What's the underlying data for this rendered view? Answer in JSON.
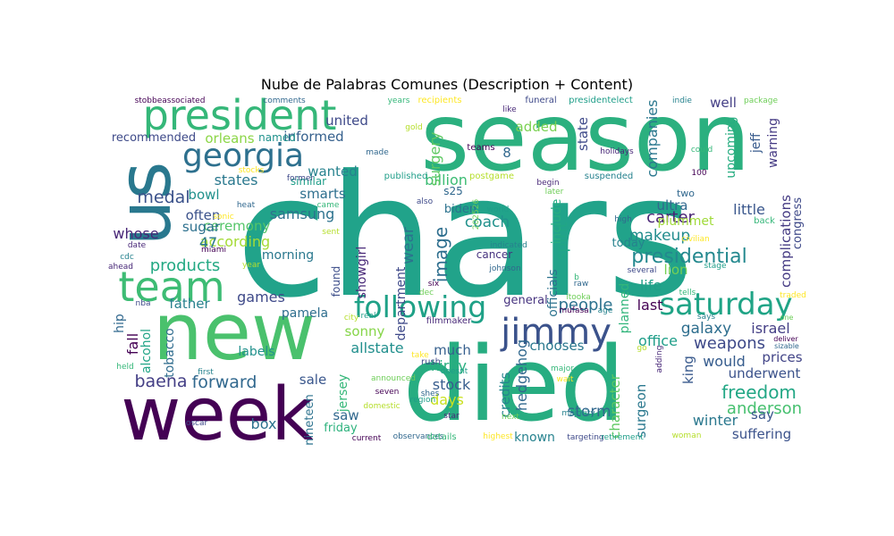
{
  "chart_data": {
    "type": "wordcloud",
    "title": "Nube de Palabras Comunes (Description + Content)",
    "background": "#ffffff",
    "colormap": "viridis",
    "words": [
      {
        "text": "chars",
        "color": "#21a38a"
      },
      {
        "text": "season",
        "color": "#2bb07f"
      },
      {
        "text": "died",
        "color": "#27ad81"
      },
      {
        "text": "new",
        "color": "#4ac16d"
      },
      {
        "text": "week",
        "color": "#440154"
      },
      {
        "text": "us",
        "color": "#29788e"
      },
      {
        "text": "president",
        "color": "#35b779"
      },
      {
        "text": "team",
        "color": "#3dbc74"
      },
      {
        "text": "georgia",
        "color": "#2d708e"
      },
      {
        "text": "jimmy",
        "color": "#3b528b"
      },
      {
        "text": "following",
        "color": "#1fa187"
      },
      {
        "text": "saturday",
        "color": "#20a486"
      },
      {
        "text": "presidential",
        "color": "#23888e"
      },
      {
        "text": "people",
        "color": "#2c728e"
      },
      {
        "text": "freedom",
        "color": "#22a785"
      },
      {
        "text": "forward",
        "color": "#31688e"
      },
      {
        "text": "baena",
        "color": "#433e85"
      },
      {
        "text": "anderson",
        "color": "#46c06f"
      },
      {
        "text": "medal",
        "color": "#3b528b"
      },
      {
        "text": "weapons",
        "color": "#3e4989"
      },
      {
        "text": "carter",
        "color": "#482475"
      },
      {
        "text": "products",
        "color": "#23a983"
      },
      {
        "text": "makeup",
        "color": "#228c8d"
      },
      {
        "text": "coach",
        "color": "#21918c"
      },
      {
        "text": "according",
        "color": "#a5db36"
      },
      {
        "text": "states",
        "color": "#2a788e"
      },
      {
        "text": "ceremony",
        "color": "#54c568"
      },
      {
        "text": "samsung",
        "color": "#2c728e"
      },
      {
        "text": "informed",
        "color": "#35608d"
      },
      {
        "text": "orleans",
        "color": "#8bd646"
      },
      {
        "text": "united",
        "color": "#3e4989"
      },
      {
        "text": "recommended",
        "color": "#3e4a89"
      },
      {
        "text": "wanted",
        "color": "#26828e"
      },
      {
        "text": "smarts",
        "color": "#2e6f8e"
      },
      {
        "text": "billion",
        "color": "#3dbc74"
      },
      {
        "text": "image",
        "color": "#2e6e8e"
      },
      {
        "text": "spirit",
        "color": "#21a685"
      },
      {
        "text": "wear",
        "color": "#2c728e"
      },
      {
        "text": "surgery",
        "color": "#5ec962"
      },
      {
        "text": "added",
        "color": "#7ad151"
      },
      {
        "text": "companies",
        "color": "#2a778e"
      },
      {
        "text": "upcoming",
        "color": "#27ad81"
      },
      {
        "text": "jeff",
        "color": "#375a8c"
      },
      {
        "text": "warning",
        "color": "#443983"
      },
      {
        "text": "complications",
        "color": "#443a83"
      },
      {
        "text": "congress",
        "color": "#3e4989"
      },
      {
        "text": "little",
        "color": "#39568c"
      },
      {
        "text": "ultra",
        "color": "#31688e"
      },
      {
        "text": "plummet",
        "color": "#a0da39"
      },
      {
        "text": "lion",
        "color": "#75d054"
      },
      {
        "text": "life",
        "color": "#1fa088"
      },
      {
        "text": "last",
        "color": "#440154"
      },
      {
        "text": "galaxy",
        "color": "#2e6e8e"
      },
      {
        "text": "israel",
        "color": "#433e85"
      },
      {
        "text": "office",
        "color": "#1f9e89"
      },
      {
        "text": "would",
        "color": "#365c8d"
      },
      {
        "text": "underwent",
        "color": "#3b528b"
      },
      {
        "text": "prices",
        "color": "#414487"
      },
      {
        "text": "king",
        "color": "#38598c"
      },
      {
        "text": "winter",
        "color": "#2a788e"
      },
      {
        "text": "say",
        "color": "#39568c"
      },
      {
        "text": "suffering",
        "color": "#3b528b"
      },
      {
        "text": "storm",
        "color": "#31688e"
      },
      {
        "text": "surgeon",
        "color": "#2a788e"
      },
      {
        "text": "character",
        "color": "#5ec962"
      },
      {
        "text": "planned",
        "color": "#31b57b"
      },
      {
        "text": "officials",
        "color": "#2c728e"
      },
      {
        "text": "include",
        "color": "#27ad81"
      },
      {
        "text": "state",
        "color": "#3e4989"
      },
      {
        "text": "chooses",
        "color": "#2a788e"
      },
      {
        "text": "hedgehog",
        "color": "#31688e"
      },
      {
        "text": "credits",
        "color": "#25848e"
      },
      {
        "text": "known",
        "color": "#26828e"
      },
      {
        "text": "days",
        "color": "#cae11f"
      },
      {
        "text": "stock",
        "color": "#365c8d"
      },
      {
        "text": "kirby",
        "color": "#29af7f"
      },
      {
        "text": "much",
        "color": "#355f8d"
      },
      {
        "text": "sonny",
        "color": "#86d549"
      },
      {
        "text": "allstate",
        "color": "#218f8d"
      },
      {
        "text": "department",
        "color": "#3e4989"
      },
      {
        "text": "showgirl",
        "color": "#482878"
      },
      {
        "text": "general",
        "color": "#46337f"
      },
      {
        "text": "sale",
        "color": "#39568c"
      },
      {
        "text": "jersey",
        "color": "#35b779"
      },
      {
        "text": "saw",
        "color": "#31688e"
      },
      {
        "text": "friday",
        "color": "#2db27d"
      },
      {
        "text": "nineteen",
        "color": "#2c728e"
      },
      {
        "text": "box",
        "color": "#2c728e"
      },
      {
        "text": "labels",
        "color": "#21918c"
      },
      {
        "text": "pamela",
        "color": "#2e6e8e"
      },
      {
        "text": "games",
        "color": "#3e4989"
      },
      {
        "text": "father",
        "color": "#27808e"
      },
      {
        "text": "hip",
        "color": "#31688e"
      },
      {
        "text": "fall",
        "color": "#440154"
      },
      {
        "text": "alcohol",
        "color": "#20a486"
      },
      {
        "text": "tobacco",
        "color": "#2f6c8e"
      },
      {
        "text": "whose",
        "color": "#482677"
      },
      {
        "text": "often",
        "color": "#3b528b"
      },
      {
        "text": "sugar",
        "color": "#2d708e"
      },
      {
        "text": "bowl",
        "color": "#21918c"
      },
      {
        "text": "morning",
        "color": "#2a788e"
      },
      {
        "text": "found",
        "color": "#3d4e8a"
      },
      {
        "text": "named",
        "color": "#20928c"
      },
      {
        "text": "similar",
        "color": "#1f9e89"
      },
      {
        "text": "today",
        "color": "#26828e"
      },
      {
        "text": "well",
        "color": "#433e85"
      },
      {
        "text": "biden",
        "color": "#2c728e"
      },
      {
        "text": "cancer",
        "color": "#46337f"
      },
      {
        "text": "s25",
        "color": "#31688e"
      },
      {
        "text": "8",
        "color": "#31688e"
      },
      {
        "text": "47",
        "color": "#2a788e"
      },
      {
        "text": "two",
        "color": "#31688e"
      }
    ],
    "small_words": [
      "stobbeassociated",
      "comments",
      "years",
      "recipients",
      "funeral",
      "presidentelect",
      "gold",
      "like",
      "indie",
      "package",
      "teams",
      "made",
      "could",
      "stocks",
      "former",
      "published",
      "postgame",
      "begin",
      "suspended",
      "later",
      "100",
      "heat",
      "came",
      "sonic",
      "also",
      "world",
      "sent",
      "date",
      "indicated",
      "202526",
      "miami",
      "high",
      "back",
      "civilian",
      "several",
      "stage",
      "year",
      "ahead",
      "cdc",
      "dec",
      "six",
      "johnson",
      "tells",
      "traded",
      "nba",
      "real",
      "city",
      "filmmaker",
      "says",
      "one",
      "deliver",
      "sizable",
      "held",
      "take",
      "rush",
      "doesnt",
      "go",
      "adding",
      "first",
      "announced",
      "seven",
      "shes",
      "major",
      "wait",
      "oscar",
      "region",
      "domestic",
      "star",
      "majority",
      "next",
      "current",
      "observances",
      "details",
      "highest",
      "targeting",
      "retirement",
      "woman",
      "holidays",
      "age",
      "itooka",
      "mufasa",
      "raw",
      "b"
    ]
  }
}
